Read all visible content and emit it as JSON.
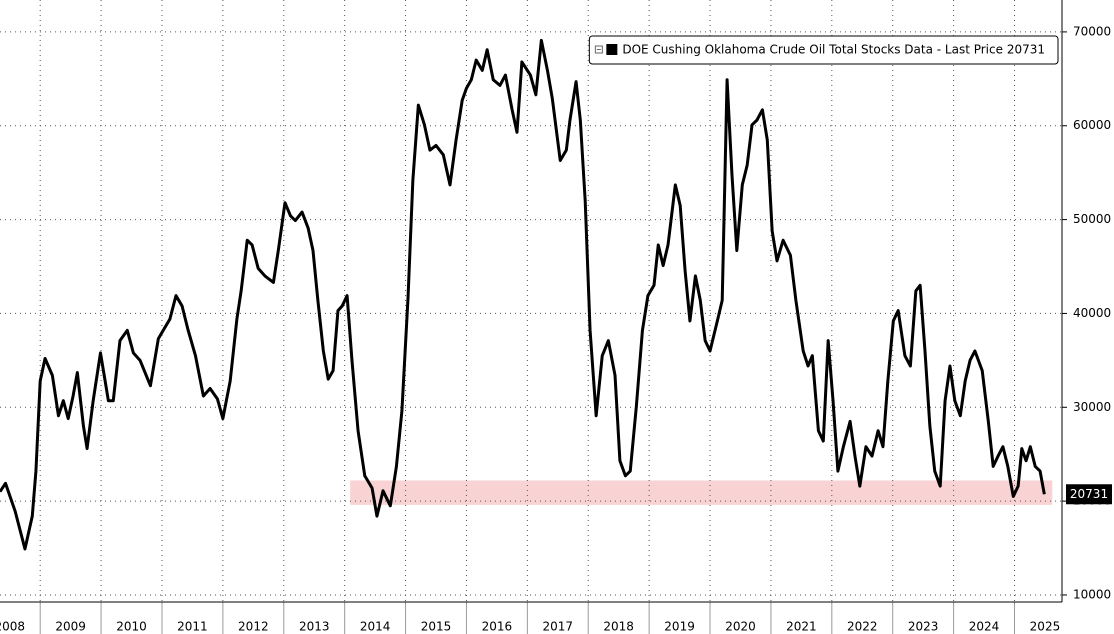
{
  "chart_data": {
    "type": "line",
    "x": [
      2008.34,
      2008.43,
      2008.59,
      2008.75,
      2008.87,
      2008.93,
      2009.0,
      2009.08,
      2009.2,
      2009.3,
      2009.38,
      2009.46,
      2009.54,
      2009.61,
      2009.71,
      2009.77,
      2009.87,
      2009.99,
      2010.12,
      2010.2,
      2010.31,
      2010.43,
      2010.53,
      2010.64,
      2010.81,
      2010.94,
      2011.02,
      2011.13,
      2011.23,
      2011.33,
      2011.43,
      2011.55,
      2011.68,
      2011.79,
      2011.91,
      2012.0,
      2012.12,
      2012.23,
      2012.3,
      2012.4,
      2012.48,
      2012.58,
      2012.69,
      2012.83,
      2012.91,
      2013.02,
      2013.11,
      2013.19,
      2013.3,
      2013.4,
      2013.48,
      2013.56,
      2013.65,
      2013.73,
      2013.81,
      2013.89,
      2013.96,
      2014.04,
      2014.12,
      2014.22,
      2014.33,
      2014.45,
      2014.53,
      2014.63,
      2014.75,
      2014.85,
      2014.94,
      2015.04,
      2015.12,
      2015.21,
      2015.31,
      2015.4,
      2015.5,
      2015.62,
      2015.73,
      2015.83,
      2015.93,
      2016.0,
      2016.08,
      2016.16,
      2016.26,
      2016.34,
      2016.44,
      2016.55,
      2016.64,
      2016.75,
      2016.83,
      2016.91,
      2017.05,
      2017.14,
      2017.23,
      2017.33,
      2017.41,
      2017.54,
      2017.64,
      2017.7,
      2017.8,
      2017.87,
      2017.95,
      2018.03,
      2018.13,
      2018.23,
      2018.33,
      2018.44,
      2018.52,
      2018.61,
      2018.69,
      2018.79,
      2018.89,
      2018.98,
      2019.08,
      2019.15,
      2019.23,
      2019.31,
      2019.43,
      2019.51,
      2019.59,
      2019.67,
      2019.76,
      2019.84,
      2019.92,
      2020.0,
      2020.12,
      2020.2,
      2020.28,
      2020.36,
      2020.44,
      2020.53,
      2020.61,
      2020.69,
      2020.77,
      2020.86,
      2020.94,
      2021.02,
      2021.1,
      2021.2,
      2021.32,
      2021.41,
      2021.53,
      2021.61,
      2021.68,
      2021.78,
      2021.86,
      2021.94,
      2022.02,
      2022.1,
      2022.19,
      2022.3,
      2022.38,
      2022.46,
      2022.56,
      2022.66,
      2022.76,
      2022.84,
      2022.92,
      2023.01,
      2023.09,
      2023.2,
      2023.29,
      2023.38,
      2023.45,
      2023.53,
      2023.61,
      2023.69,
      2023.78,
      2023.86,
      2023.94,
      2024.02,
      2024.11,
      2024.19,
      2024.27,
      2024.35,
      2024.47,
      2024.57,
      2024.65,
      2024.73,
      2024.81,
      2024.89,
      2024.98,
      2025.06,
      2025.12,
      2025.19,
      2025.26,
      2025.34,
      2025.42,
      2025.49
    ],
    "series": [
      {
        "name": "DOE Cushing Oklahoma Crude Oil Total Stocks Data - Last Price 20731",
        "color": "#000000",
        "values": [
          21000,
          21900,
          18900,
          14900,
          18400,
          23200,
          32800,
          35200,
          33400,
          29100,
          30700,
          28800,
          31200,
          33700,
          28000,
          25600,
          30700,
          35800,
          30700,
          30700,
          37100,
          38200,
          35800,
          35000,
          32300,
          37300,
          38200,
          39400,
          41900,
          40800,
          38200,
          35500,
          31200,
          32000,
          30900,
          28800,
          32800,
          39400,
          42400,
          47800,
          47300,
          44800,
          44000,
          43300,
          46700,
          51800,
          50400,
          49900,
          50800,
          49100,
          46700,
          41400,
          36000,
          33000,
          33900,
          40300,
          40800,
          41900,
          35000,
          27500,
          22700,
          21400,
          18400,
          21100,
          19500,
          23700,
          29600,
          41600,
          54200,
          62200,
          60100,
          57400,
          57900,
          56900,
          53700,
          58500,
          62700,
          64000,
          64900,
          67000,
          65900,
          68100,
          64900,
          64300,
          65400,
          61700,
          59300,
          66800,
          65400,
          63300,
          69100,
          65900,
          62900,
          56300,
          57400,
          60600,
          64700,
          60600,
          52000,
          38200,
          29100,
          35500,
          37100,
          33400,
          24300,
          22700,
          23200,
          30100,
          38200,
          41900,
          43000,
          47300,
          45100,
          47300,
          53700,
          51500,
          44600,
          39200,
          44000,
          41400,
          37100,
          36000,
          39200,
          41400,
          64900,
          54800,
          46700,
          53700,
          55800,
          60100,
          60600,
          61700,
          58500,
          48800,
          45600,
          47800,
          46200,
          41400,
          36000,
          34400,
          35500,
          27500,
          26400,
          37100,
          30700,
          23200,
          25800,
          28500,
          24800,
          21600,
          25800,
          24800,
          27500,
          25800,
          32800,
          39200,
          40300,
          35500,
          34400,
          42400,
          43000,
          36000,
          28000,
          23200,
          21600,
          30700,
          34400,
          30700,
          29100,
          32800,
          35000,
          36000,
          33900,
          28500,
          23700,
          24800,
          25800,
          23700,
          20500,
          21600,
          25600,
          24300,
          25800,
          23700,
          23200,
          20731
        ]
      }
    ],
    "xlim": [
      2008.34,
      2025.78
    ],
    "xticks": [
      2008,
      2009,
      2010,
      2011,
      2012,
      2013,
      2014,
      2015,
      2016,
      2017,
      2018,
      2019,
      2020,
      2021,
      2022,
      2023,
      2024,
      2025
    ],
    "ylim": [
      9250,
      73400
    ],
    "yticks": [
      10000,
      20000,
      30000,
      40000,
      50000,
      60000,
      70000
    ],
    "grid": true,
    "band": {
      "x": [
        2014.09,
        2025.62
      ],
      "y": [
        19600,
        22200
      ],
      "color": "#f9d3d3"
    },
    "legend": "upper right"
  }
}
